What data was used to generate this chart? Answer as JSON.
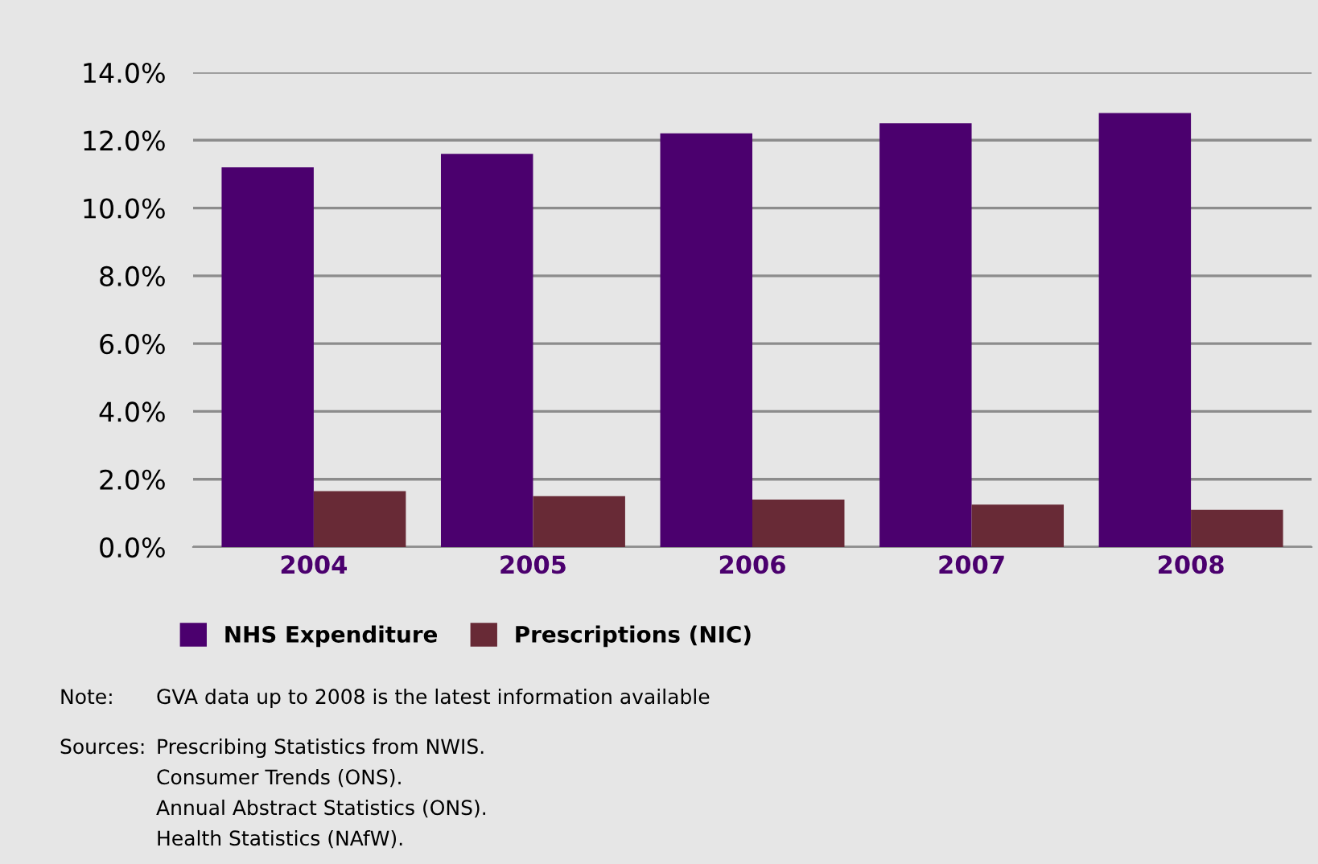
{
  "chart_data": {
    "type": "bar",
    "categories": [
      "2004",
      "2005",
      "2006",
      "2007",
      "2008"
    ],
    "series": [
      {
        "name": "NHS Expenditure",
        "color": "#4b006e",
        "values": [
          11.2,
          11.6,
          12.2,
          12.5,
          12.8
        ]
      },
      {
        "name": "Prescriptions (NIC)",
        "color": "#682a36",
        "values": [
          1.65,
          1.5,
          1.4,
          1.25,
          1.1
        ]
      }
    ],
    "ylim": [
      0,
      14
    ],
    "yticks": [
      {
        "value": 0,
        "label": "0.0%"
      },
      {
        "value": 2,
        "label": "2.0%"
      },
      {
        "value": 4,
        "label": "4.0%"
      },
      {
        "value": 6,
        "label": "6.0%"
      },
      {
        "value": 8,
        "label": "8.0%"
      },
      {
        "value": 10,
        "label": "10.0%"
      },
      {
        "value": 12,
        "label": "12.0%"
      },
      {
        "value": 14,
        "label": "14.0%"
      }
    ],
    "grid": "y",
    "legend": "bottom",
    "annotations": [
      "Note:",
      "GVA data up to 2008 is the latest information available",
      "Sources:",
      "Prescribing Statistics from NWIS.",
      "Consumer Trends (ONS).",
      "Annual Abstract Statistics (ONS).",
      "Health Statistics (NAfW)."
    ]
  }
}
